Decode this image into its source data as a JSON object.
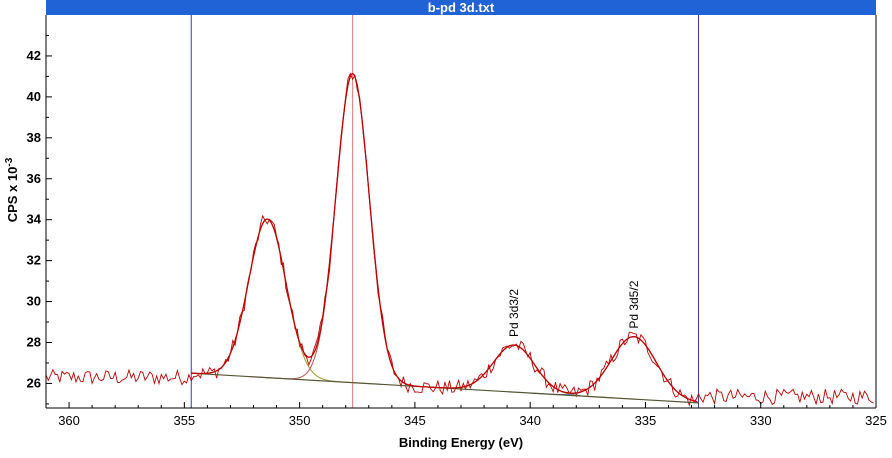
{
  "window": {
    "title": "b-pd 3d.txt"
  },
  "chart_data": {
    "type": "line",
    "xlabel": "Binding Energy (eV)",
    "ylabel_main": "CPS x 10",
    "ylabel_exp": "-3",
    "xlim": [
      361,
      325
    ],
    "ylim": [
      24.8,
      44
    ],
    "x_ticks": [
      360,
      355,
      350,
      345,
      340,
      335,
      330,
      325
    ],
    "y_ticks": [
      26,
      28,
      30,
      32,
      34,
      36,
      38,
      40,
      42
    ],
    "grid": false,
    "region_markers_x": [
      354.7,
      332.7
    ],
    "center_marker_x": 347.7,
    "background_line": {
      "x_start": 354.7,
      "y_start": 26.5,
      "x_end": 332.7,
      "y_end": 25.05
    },
    "peaks": [
      {
        "label": "",
        "center": 351.4,
        "height": 7.75,
        "fwhm": 1.9,
        "color": "#9a9a2a"
      },
      {
        "label": "",
        "center": 347.7,
        "height": 15.1,
        "fwhm": 1.7,
        "color": "#c2504a"
      },
      {
        "label": "Pd 3d3/2",
        "center": 340.7,
        "height": 2.3,
        "fwhm": 2.1,
        "color": "#9a9a2a"
      },
      {
        "label": "Pd 3d5/2",
        "center": 335.5,
        "height": 3.05,
        "fwhm": 2.3,
        "color": "#5f7fbf"
      }
    ],
    "series": [
      {
        "name": "",
        "kind": "raw",
        "color": "#c00000"
      },
      {
        "name": "",
        "kind": "envelope",
        "color": "#c00000"
      }
    ],
    "baseline_raw_y": 26.3
  }
}
